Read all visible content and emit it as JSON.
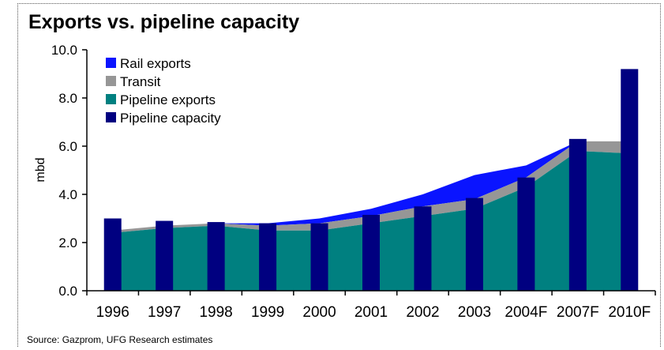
{
  "title": "Exports vs. pipeline capacity",
  "source": "Source: Gazprom, UFG Research estimates",
  "colors": {
    "rail": "#0a14ff",
    "transit": "#969696",
    "pipeline_exports": "#008080",
    "capacity": "#000080"
  },
  "chart_data": {
    "type": "area",
    "title": "Exports vs. pipeline capacity",
    "xlabel": "",
    "ylabel": "mbd",
    "ylim": [
      0,
      10
    ],
    "yticks": [
      "0.0",
      "2.0",
      "4.0",
      "6.0",
      "8.0",
      "10.0"
    ],
    "categories": [
      "1996",
      "1997",
      "1998",
      "1999",
      "2000",
      "2001",
      "2002",
      "2003",
      "2004F",
      "2007F",
      "2010F"
    ],
    "legend_position": "top-left",
    "series": [
      {
        "name": "Rail exports",
        "kind": "stacked-area",
        "values": [
          0,
          0,
          0,
          0.1,
          0.2,
          0.3,
          0.5,
          1.0,
          0.5,
          0,
          0
        ]
      },
      {
        "name": "Transit",
        "kind": "stacked-area",
        "values": [
          0.1,
          0.1,
          0.1,
          0.2,
          0.3,
          0.3,
          0.4,
          0.4,
          0.4,
          0.4,
          0.5
        ]
      },
      {
        "name": "Pipeline exports",
        "kind": "stacked-area",
        "values": [
          2.4,
          2.6,
          2.7,
          2.5,
          2.5,
          2.8,
          3.1,
          3.4,
          4.3,
          5.8,
          5.7
        ]
      },
      {
        "name": "Pipeline capacity",
        "kind": "bar",
        "values": [
          3.0,
          2.9,
          2.85,
          2.8,
          2.8,
          3.15,
          3.5,
          3.85,
          4.7,
          6.3,
          9.2
        ]
      }
    ]
  }
}
